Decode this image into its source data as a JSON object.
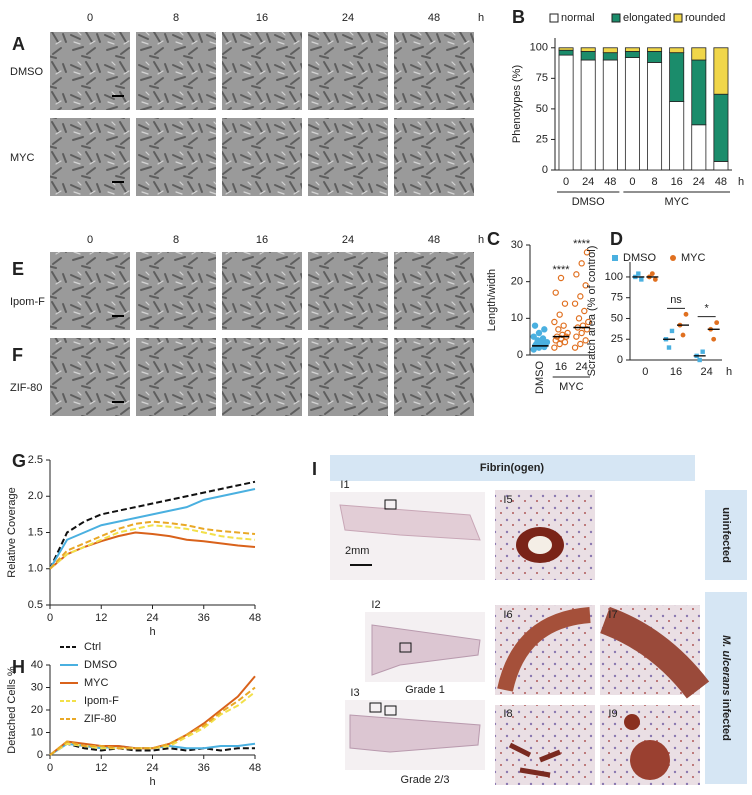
{
  "panel_a": {
    "letter": "A",
    "times": [
      "0",
      "8",
      "16",
      "24",
      "48"
    ],
    "unit": "h",
    "rows": [
      "DMSO",
      "MYC"
    ]
  },
  "panel_ef": {
    "letters": [
      "E",
      "F"
    ],
    "times": [
      "0",
      "8",
      "16",
      "24",
      "48"
    ],
    "unit": "h",
    "rows": [
      "Ipom-F",
      "ZIF-80"
    ]
  },
  "panel_i": {
    "letter": "I",
    "header": "Fibrin(ogen)",
    "labels": [
      "I1",
      "I2",
      "I3",
      "I5",
      "I6",
      "I7",
      "I8",
      "I9"
    ],
    "scale": "2mm",
    "grades": [
      "Grade 1",
      "Grade 2/3"
    ],
    "side_top": "uninfected",
    "side_bottom_italic": "M. ulcerans",
    "side_bottom": "infected"
  },
  "chart_data": [
    {
      "type": "stacked-bar",
      "letter": "B",
      "ylabel": "Phenotypes (%)",
      "xunit": "h",
      "groups": [
        {
          "name": "DMSO",
          "categories": [
            "0",
            "24",
            "48"
          ]
        },
        {
          "name": "MYC",
          "categories": [
            "0",
            "8",
            "16",
            "24",
            "48"
          ]
        }
      ],
      "series": [
        {
          "name": "normal",
          "color": "#ffffff",
          "values": [
            94,
            90,
            90,
            92,
            88,
            56,
            37,
            7
          ]
        },
        {
          "name": "elongated",
          "color": "#1b8c6b",
          "values": [
            4,
            7,
            6,
            5,
            9,
            40,
            53,
            55
          ]
        },
        {
          "name": "rounded",
          "color": "#f0d64a",
          "values": [
            2,
            3,
            4,
            3,
            3,
            4,
            10,
            38
          ]
        }
      ],
      "ylim": [
        0,
        108
      ],
      "yticks": [
        0,
        25,
        50,
        75,
        100
      ]
    },
    {
      "type": "strip",
      "letter": "C",
      "ylabel": "Length/width",
      "categories": [
        "DMSO",
        "16",
        "24"
      ],
      "group_label": "MYC",
      "colors": [
        "#4ab0e0",
        "#e07020",
        "#e07020"
      ],
      "points": [
        [
          1.5,
          2,
          2.2,
          2.5,
          2.8,
          3,
          3,
          3.2,
          3.5,
          4,
          4.5,
          5,
          6,
          7,
          8
        ],
        [
          2,
          3,
          3.5,
          4,
          4.5,
          5,
          5,
          5.5,
          6,
          7,
          8,
          9,
          11,
          14,
          17,
          21
        ],
        [
          2,
          3,
          4,
          5,
          6,
          7,
          7.5,
          8,
          9,
          10,
          12,
          14,
          16,
          19,
          22,
          25,
          28
        ]
      ],
      "medians": [
        2.5,
        5,
        7.5
      ],
      "annotations": [
        null,
        "****",
        "****"
      ],
      "ylim": [
        0,
        30
      ],
      "yticks": [
        0,
        10,
        20,
        30
      ]
    },
    {
      "type": "dot-mean",
      "letter": "D",
      "ylabel": "Scratch area (% of control)",
      "xunit": "h",
      "categories": [
        "0",
        "16",
        "24"
      ],
      "series": [
        {
          "name": "DMSO",
          "color": "#4ab0e0",
          "points": [
            [
              100,
              104,
              97
            ],
            [
              25,
              15,
              35
            ],
            [
              5,
              0,
              10
            ]
          ],
          "means": [
            100,
            25,
            5
          ]
        },
        {
          "name": "MYC",
          "color": "#e07020",
          "points": [
            [
              100,
              104,
              97
            ],
            [
              42,
              30,
              55
            ],
            [
              37,
              25,
              45
            ]
          ],
          "means": [
            100,
            42,
            37
          ]
        }
      ],
      "annotations": [
        null,
        "ns",
        "*"
      ],
      "ylim": [
        0,
        118
      ],
      "yticks": [
        0,
        25,
        50,
        75,
        100
      ]
    },
    {
      "type": "line",
      "letter": "G",
      "ylabel": "Relative Coverage",
      "xlabel": "h",
      "x": [
        0,
        4,
        8,
        12,
        16,
        20,
        24,
        28,
        32,
        36,
        40,
        44,
        48
      ],
      "series": [
        {
          "name": "Ctrl",
          "color": "#111111",
          "dash": "dashed",
          "values": [
            1.0,
            1.5,
            1.65,
            1.75,
            1.8,
            1.85,
            1.9,
            1.95,
            2.0,
            2.05,
            2.1,
            2.15,
            2.2
          ]
        },
        {
          "name": "DMSO",
          "color": "#4ab0e0",
          "dash": "solid",
          "values": [
            1.0,
            1.4,
            1.5,
            1.6,
            1.65,
            1.7,
            1.75,
            1.8,
            1.85,
            1.95,
            2.0,
            2.05,
            2.1
          ]
        },
        {
          "name": "MYC",
          "color": "#d9621b",
          "dash": "solid",
          "values": [
            1.0,
            1.2,
            1.3,
            1.38,
            1.45,
            1.5,
            1.48,
            1.45,
            1.4,
            1.38,
            1.35,
            1.32,
            1.3
          ]
        },
        {
          "name": "Ipom-F",
          "color": "#f2e04a",
          "dash": "dashed",
          "values": [
            1.0,
            1.2,
            1.3,
            1.4,
            1.5,
            1.55,
            1.6,
            1.58,
            1.55,
            1.5,
            1.45,
            1.42,
            1.4
          ]
        },
        {
          "name": "ZIF-80",
          "color": "#e9a826",
          "dash": "dashed",
          "values": [
            1.0,
            1.25,
            1.35,
            1.45,
            1.55,
            1.62,
            1.65,
            1.63,
            1.6,
            1.55,
            1.52,
            1.5,
            1.48
          ]
        }
      ],
      "ylim": [
        0.5,
        2.5
      ],
      "yticks": [
        0.5,
        {
          "value": 1,
          "label": "1.0"
        },
        1.5,
        {
          "value": 2,
          "label": "2.0"
        },
        2.5
      ],
      "xlim": [
        0,
        48
      ],
      "xticks": [
        0,
        12,
        24,
        36,
        48
      ]
    },
    {
      "type": "line",
      "letter": "H",
      "ylabel": "Detached Cells %",
      "xlabel": "h",
      "x": [
        0,
        4,
        8,
        12,
        16,
        20,
        24,
        28,
        32,
        36,
        40,
        44,
        48
      ],
      "series": [
        {
          "color": "#111111",
          "dash": "dashed",
          "values": [
            0,
            5,
            3,
            2,
            3,
            2,
            2,
            3,
            2,
            3,
            2,
            3,
            3
          ]
        },
        {
          "color": "#4ab0e0",
          "dash": "solid",
          "values": [
            0,
            5,
            4,
            3,
            4,
            3,
            3,
            4,
            3,
            3,
            4,
            4,
            5
          ]
        },
        {
          "color": "#d9621b",
          "dash": "solid",
          "values": [
            0,
            6,
            5,
            4,
            4,
            3,
            3,
            5,
            9,
            14,
            20,
            26,
            35
          ]
        },
        {
          "color": "#f2e04a",
          "dash": "dashed",
          "values": [
            0,
            5,
            4,
            3,
            3,
            3,
            3,
            4,
            8,
            12,
            18,
            22,
            28
          ]
        },
        {
          "color": "#e9a826",
          "dash": "dashed",
          "values": [
            0,
            6,
            4,
            4,
            3,
            3,
            3,
            5,
            9,
            13,
            19,
            24,
            30
          ]
        }
      ],
      "ylim": [
        0,
        40
      ],
      "yticks": [
        0,
        10,
        20,
        30,
        40
      ],
      "xlim": [
        0,
        48
      ],
      "xticks": [
        0,
        12,
        24,
        36,
        48
      ]
    }
  ]
}
